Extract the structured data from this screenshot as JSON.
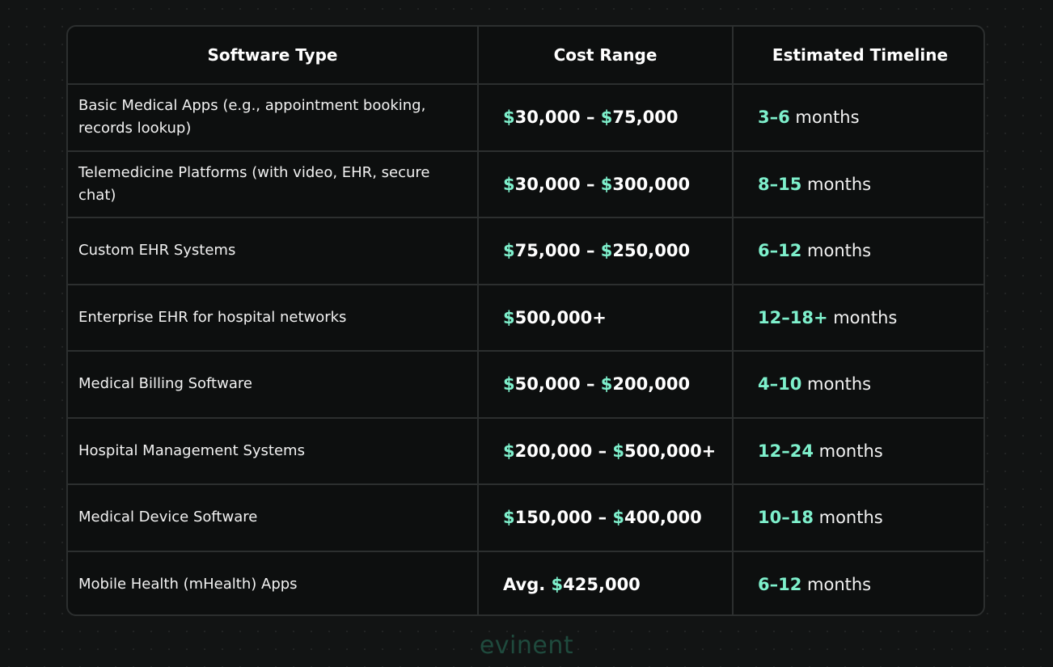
{
  "table": {
    "headers": [
      "Software Type",
      "Cost Range",
      "Estimated Timeline"
    ],
    "rows": [
      {
        "type": "Basic Medical Apps (e.g., appointment booking, records lookup)",
        "cost": [
          {
            "d": "$",
            "t": "30,000 – "
          },
          {
            "d": "$",
            "t": "75,000"
          }
        ],
        "time_range": "3–6",
        "time_unit": " months"
      },
      {
        "type": "Telemedicine Platforms (with video, EHR, secure chat)",
        "cost": [
          {
            "d": "$",
            "t": "30,000 – "
          },
          {
            "d": "$",
            "t": "300,000"
          }
        ],
        "time_range": "8–15",
        "time_unit": " months"
      },
      {
        "type": "Custom EHR Systems",
        "cost": [
          {
            "d": "$",
            "t": "75,000 – "
          },
          {
            "d": "$",
            "t": "250,000"
          }
        ],
        "time_range": "6–12",
        "time_unit": " months"
      },
      {
        "type": "Enterprise EHR for hospital networks",
        "cost": [
          {
            "d": "$",
            "t": "500,000+"
          }
        ],
        "time_range": "12–18+",
        "time_unit": " months"
      },
      {
        "type": "Medical Billing Software",
        "cost": [
          {
            "d": "$",
            "t": "50,000 – "
          },
          {
            "d": "$",
            "t": "200,000"
          }
        ],
        "time_range": "4–10",
        "time_unit": " months"
      },
      {
        "type": "Hospital Management Systems",
        "cost": [
          {
            "d": "$",
            "t": "200,000 – "
          },
          {
            "d": "$",
            "t": "500,000+"
          }
        ],
        "time_range": "12–24",
        "time_unit": " months"
      },
      {
        "type": "Medical Device Software",
        "cost": [
          {
            "d": "$",
            "t": "150,000 – "
          },
          {
            "d": "$",
            "t": "400,000"
          }
        ],
        "time_range": "10–18",
        "time_unit": " months"
      },
      {
        "type": "Mobile Health (mHealth) Apps",
        "cost": [
          {
            "p": "Avg. "
          },
          {
            "d": "$",
            "t": "425,000"
          }
        ],
        "time_range": "6–12",
        "time_unit": " months"
      }
    ]
  },
  "brand": {
    "logo_text": "evinent"
  },
  "colors": {
    "background": "#121414",
    "accent": "#7ef0cc",
    "border": "#2c2f2f",
    "logo": "#1f4a3d"
  }
}
